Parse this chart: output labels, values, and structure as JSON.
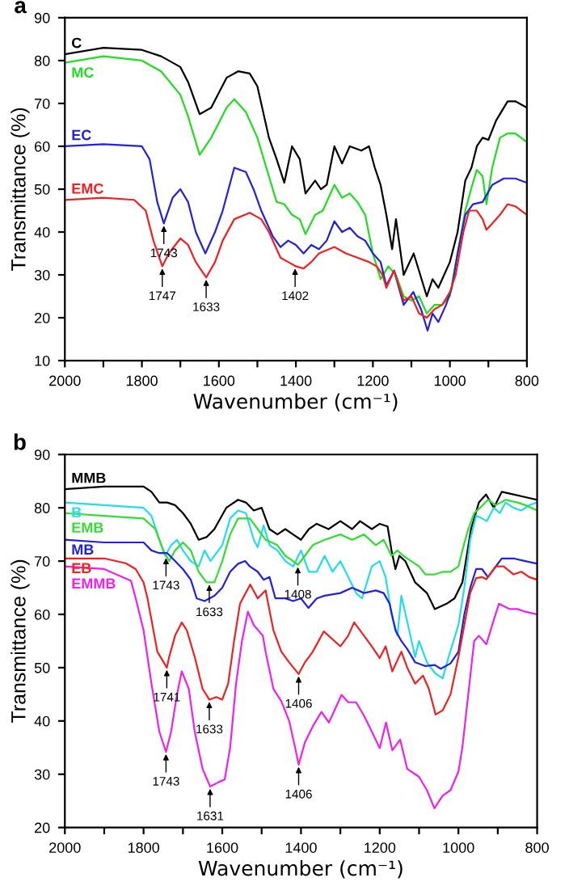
{
  "chart_data": [
    {
      "type": "line",
      "title": "a",
      "xlabel": "Wavenumber (cm⁻¹)",
      "ylabel": "Transmittance (%)",
      "xlim": [
        2000,
        800
      ],
      "ylim": [
        10,
        90
      ],
      "xticks": [
        2000,
        {
          "value": 1900,
          "label": null
        },
        1800,
        {
          "value": 1700,
          "label": null
        },
        1600,
        {
          "value": 1500,
          "label": null
        },
        1400,
        {
          "value": 1300,
          "label": null
        },
        1200,
        {
          "value": 1100,
          "label": null
        },
        1000,
        {
          "value": 900,
          "label": null
        },
        800
      ],
      "yticks": [
        10,
        20,
        30,
        40,
        50,
        60,
        70,
        80,
        90
      ],
      "grid": false,
      "legend": false,
      "marker": "none",
      "line_style": "solid",
      "series": [
        {
          "name": "C",
          "color": "#000000",
          "x": [
            2000,
            1900,
            1800,
            1750,
            1700,
            1680,
            1650,
            1620,
            1580,
            1550,
            1520,
            1500,
            1470,
            1450,
            1430,
            1410,
            1390,
            1375,
            1350,
            1335,
            1320,
            1300,
            1280,
            1260,
            1230,
            1210,
            1195,
            1180,
            1165,
            1150,
            1140,
            1120,
            1094,
            1060,
            1045,
            1030,
            1000,
            980,
            960,
            944,
            930,
            915,
            900,
            880,
            850,
            830,
            800
          ],
          "values": [
            81.5,
            83,
            82.5,
            81,
            78.5,
            75,
            67.5,
            69,
            76,
            77.5,
            77,
            74,
            62,
            57,
            51.5,
            60,
            57,
            49,
            52,
            50,
            51,
            60,
            56,
            60,
            59,
            60,
            55,
            51,
            44,
            36,
            43,
            30,
            35,
            25,
            29,
            27,
            33,
            40,
            52,
            55,
            60,
            62,
            61.5,
            66,
            70.5,
            70.5,
            69
          ]
        },
        {
          "name": "MC",
          "color": "#22dd22",
          "x": [
            2000,
            1900,
            1800,
            1750,
            1700,
            1680,
            1650,
            1620,
            1580,
            1560,
            1530,
            1500,
            1470,
            1450,
            1430,
            1410,
            1390,
            1375,
            1350,
            1330,
            1300,
            1280,
            1260,
            1240,
            1220,
            1200,
            1180,
            1160,
            1140,
            1120,
            1100,
            1080,
            1060,
            1040,
            1020,
            1000,
            980,
            960,
            945,
            930,
            915,
            905,
            890,
            870,
            850,
            830,
            800
          ],
          "values": [
            79.5,
            81,
            80,
            77.5,
            72,
            67,
            58,
            62,
            69,
            71,
            68,
            62,
            53,
            47,
            46.5,
            44,
            43,
            39.5,
            44,
            45,
            51,
            48,
            49,
            47,
            44,
            35,
            29,
            32,
            30,
            25,
            24,
            25,
            21,
            23,
            23,
            25,
            35,
            45,
            50,
            54.5,
            53,
            46.5,
            55,
            62,
            63,
            63,
            61
          ]
        },
        {
          "name": "EC",
          "color": "#2222dd",
          "x": [
            2000,
            1900,
            1800,
            1780,
            1760,
            1743,
            1720,
            1700,
            1680,
            1660,
            1635,
            1610,
            1590,
            1560,
            1530,
            1510,
            1490,
            1460,
            1440,
            1420,
            1400,
            1380,
            1360,
            1340,
            1320,
            1300,
            1280,
            1260,
            1240,
            1220,
            1200,
            1180,
            1165,
            1145,
            1120,
            1095,
            1075,
            1058,
            1045,
            1030,
            1010,
            995,
            980,
            960,
            940,
            915,
            890,
            860,
            830,
            800
          ],
          "values": [
            60,
            60.5,
            60,
            57,
            47,
            42,
            48,
            50,
            47,
            40,
            35,
            40,
            45,
            55,
            54,
            50,
            45,
            39,
            36.5,
            38,
            37,
            35,
            37,
            36,
            38,
            42.5,
            40,
            41,
            39,
            38,
            35,
            33,
            27.5,
            31,
            23,
            26,
            22,
            17,
            21,
            19,
            23,
            27,
            35,
            44,
            46.5,
            47,
            51,
            52.5,
            52.5,
            51.5
          ]
        },
        {
          "name": "EMC",
          "color": "#ee2222",
          "x": [
            2000,
            1900,
            1820,
            1790,
            1770,
            1747,
            1730,
            1700,
            1680,
            1660,
            1633,
            1610,
            1590,
            1560,
            1520,
            1490,
            1470,
            1440,
            1420,
            1400,
            1380,
            1360,
            1340,
            1300,
            1270,
            1240,
            1210,
            1190,
            1175,
            1165,
            1145,
            1120,
            1100,
            1080,
            1060,
            1040,
            1020,
            1000,
            985,
            965,
            950,
            930,
            915,
            905,
            890,
            870,
            850,
            830,
            800
          ],
          "values": [
            47.5,
            48,
            47.5,
            45,
            38,
            32,
            35,
            38.5,
            37,
            33,
            29.4,
            33,
            38,
            43,
            44.5,
            43,
            40,
            34,
            33,
            32,
            31.5,
            33,
            35,
            36.5,
            35,
            34,
            33,
            32,
            30,
            27,
            31,
            24,
            25,
            21,
            20,
            22,
            23,
            26,
            30,
            40,
            45,
            45,
            43,
            40.5,
            42,
            44,
            46.5,
            46,
            44
          ]
        }
      ],
      "annotations": [
        {
          "text": "1743",
          "x": 1743,
          "y": 42
        },
        {
          "text": "1747",
          "x": 1747,
          "y": 32
        },
        {
          "text": "1633",
          "x": 1633,
          "y": 29.4
        },
        {
          "text": "1402",
          "x": 1402,
          "y": 32
        }
      ]
    },
    {
      "type": "line",
      "title": "b",
      "xlabel": "Wavenumber (cm⁻¹)",
      "ylabel": "Transmittance (%)",
      "xlim": [
        2000,
        800
      ],
      "ylim": [
        20,
        90
      ],
      "xticks": [
        2000,
        {
          "value": 1900,
          "label": null
        },
        1800,
        {
          "value": 1700,
          "label": null
        },
        1600,
        {
          "value": 1500,
          "label": null
        },
        1400,
        {
          "value": 1300,
          "label": null
        },
        1200,
        {
          "value": 1100,
          "label": null
        },
        1000,
        {
          "value": 900,
          "label": null
        },
        800
      ],
      "yticks": [
        20,
        30,
        40,
        50,
        60,
        70,
        80,
        90
      ],
      "grid": false,
      "legend": false,
      "marker": "none",
      "line_style": "solid",
      "series": [
        {
          "name": "MMB",
          "color": "#000000",
          "x": [
            2000,
            1900,
            1800,
            1780,
            1760,
            1740,
            1720,
            1700,
            1680,
            1660,
            1640,
            1620,
            1590,
            1560,
            1540,
            1520,
            1500,
            1480,
            1460,
            1440,
            1420,
            1400,
            1380,
            1360,
            1330,
            1300,
            1270,
            1250,
            1220,
            1200,
            1180,
            1170,
            1160,
            1150,
            1135,
            1110,
            1080,
            1060,
            1030,
            1010,
            990,
            968,
            948,
            930,
            910,
            890,
            860,
            830,
            800
          ],
          "values": [
            83.5,
            84,
            84,
            83,
            81,
            81,
            80.5,
            79,
            77,
            74,
            74.5,
            76,
            80,
            81.5,
            81,
            79.5,
            80,
            76,
            75,
            76,
            75,
            74,
            76,
            77,
            76,
            77.5,
            76,
            77.5,
            76,
            77,
            76.5,
            72,
            68.5,
            71,
            70,
            66,
            64,
            61,
            62,
            63,
            66,
            76,
            81,
            82.5,
            80,
            83,
            82.5,
            82,
            81.5
          ]
        },
        {
          "name": "B",
          "color": "#22ddee",
          "x": [
            2000,
            1900,
            1800,
            1780,
            1760,
            1745,
            1730,
            1715,
            1700,
            1680,
            1660,
            1645,
            1630,
            1600,
            1580,
            1560,
            1540,
            1520,
            1510,
            1495,
            1480,
            1460,
            1440,
            1420,
            1400,
            1380,
            1360,
            1340,
            1320,
            1300,
            1280,
            1260,
            1245,
            1220,
            1200,
            1185,
            1170,
            1155,
            1145,
            1125,
            1110,
            1100,
            1080,
            1060,
            1040,
            1025,
            1000,
            985,
            970,
            955,
            940,
            928,
            910,
            895,
            880,
            860,
            840,
            820,
            800
          ],
          "values": [
            81,
            80.5,
            80,
            78.5,
            74,
            71,
            73,
            74,
            72,
            70,
            69,
            72,
            70,
            73,
            78,
            79.5,
            79,
            74,
            72.6,
            76.7,
            73,
            72,
            70,
            69,
            72,
            68,
            68,
            71,
            68,
            70,
            67,
            64,
            63,
            69,
            70,
            67,
            60,
            56,
            63.5,
            57,
            52,
            55,
            51,
            49,
            48,
            52,
            58,
            65,
            74,
            78.5,
            78,
            77.5,
            80,
            79,
            81,
            80,
            79.5,
            80.5,
            81
          ]
        },
        {
          "name": "EMB",
          "color": "#33dd33",
          "x": [
            2000,
            1900,
            1800,
            1770,
            1750,
            1735,
            1720,
            1700,
            1680,
            1660,
            1640,
            1620,
            1600,
            1580,
            1560,
            1530,
            1510,
            1490,
            1460,
            1440,
            1420,
            1408,
            1390,
            1370,
            1340,
            1300,
            1270,
            1240,
            1210,
            1190,
            1170,
            1155,
            1140,
            1120,
            1100,
            1084,
            1060,
            1040,
            1020,
            1000,
            990,
            975,
            960,
            945,
            925,
            905,
            880,
            850,
            830,
            800
          ],
          "values": [
            79,
            78.5,
            78,
            76,
            72,
            70,
            72,
            73.5,
            72,
            68,
            66,
            66,
            70,
            75,
            78,
            78,
            76,
            74,
            73,
            71,
            70,
            69.3,
            71,
            73,
            74,
            75,
            74,
            75,
            73,
            74,
            71,
            72,
            71,
            70,
            69,
            67.5,
            67.5,
            68,
            68,
            69,
            72,
            76,
            79,
            80,
            81.5,
            80.5,
            81.5,
            81,
            80.5,
            79.5
          ]
        },
        {
          "name": "MB",
          "color": "#2222dd",
          "x": [
            2000,
            1900,
            1800,
            1780,
            1760,
            1740,
            1720,
            1700,
            1680,
            1665,
            1645,
            1620,
            1600,
            1580,
            1560,
            1542,
            1530,
            1510,
            1495,
            1480,
            1465,
            1440,
            1420,
            1400,
            1381,
            1360,
            1340,
            1300,
            1270,
            1240,
            1210,
            1190,
            1175,
            1160,
            1145,
            1130,
            1110,
            1084,
            1060,
            1045,
            1020,
            1000,
            985,
            970,
            955,
            940,
            925,
            910,
            890,
            860,
            830,
            800
          ],
          "values": [
            74,
            73.5,
            73.5,
            72,
            71.5,
            71.5,
            70,
            68.5,
            66.5,
            63,
            62.5,
            63.5,
            65,
            68,
            69.5,
            70,
            69,
            68,
            66.5,
            67,
            63,
            63,
            62.5,
            63,
            61.2,
            63,
            63.5,
            64,
            65,
            64,
            64.5,
            64,
            62,
            57,
            55,
            53.5,
            51,
            50.3,
            50.5,
            49.8,
            50.8,
            53,
            60,
            65,
            68.5,
            68.5,
            67,
            68.5,
            70.5,
            70.5,
            70,
            69.5
          ]
        },
        {
          "name": "EB",
          "color": "#ee2222",
          "x": [
            2000,
            1900,
            1845,
            1820,
            1800,
            1790,
            1780,
            1765,
            1741,
            1735,
            1720,
            1703,
            1690,
            1670,
            1650,
            1633,
            1615,
            1600,
            1585,
            1570,
            1555,
            1529,
            1510,
            1490,
            1470,
            1450,
            1430,
            1406,
            1390,
            1370,
            1342,
            1300,
            1280,
            1265,
            1240,
            1220,
            1200,
            1185,
            1168,
            1145,
            1130,
            1110,
            1090,
            1075,
            1058,
            1040,
            1020,
            1000,
            985,
            970,
            955,
            940,
            929,
            905,
            885,
            860,
            840,
            820,
            800
          ],
          "values": [
            70.5,
            70.5,
            69.6,
            68.5,
            66,
            63,
            59,
            53,
            50,
            52,
            56,
            58.5,
            57,
            52,
            46,
            44,
            44.5,
            44,
            47,
            55,
            62,
            65.6,
            63,
            64.5,
            57,
            53,
            51,
            48.8,
            51,
            53,
            56.8,
            54,
            56,
            58.5,
            56,
            54,
            51.8,
            54,
            49.3,
            53,
            50,
            47,
            48.5,
            46,
            41.2,
            42,
            45,
            52,
            58,
            64,
            66.8,
            67,
            66.6,
            69,
            69,
            67.5,
            68,
            67,
            66.5
          ]
        },
        {
          "name": "EMMB",
          "color": "#ee22ee",
          "x": [
            2000,
            1900,
            1832,
            1820,
            1800,
            1780,
            1760,
            1743,
            1730,
            1715,
            1703,
            1685,
            1670,
            1650,
            1631,
            1610,
            1594,
            1580,
            1565,
            1550,
            1535,
            1520,
            1497,
            1490,
            1470,
            1450,
            1430,
            1415,
            1406,
            1390,
            1370,
            1348,
            1329,
            1297,
            1280,
            1260,
            1240,
            1220,
            1200,
            1184,
            1168,
            1148,
            1130,
            1110,
            1100,
            1080,
            1061,
            1040,
            1020,
            1000,
            990,
            975,
            960,
            948,
            929,
            910,
            897,
            870,
            850,
            830,
            800
          ],
          "values": [
            69,
            68.5,
            66.3,
            63,
            57,
            47,
            38,
            34.2,
            38,
            45,
            49.3,
            46,
            38,
            31,
            27.7,
            28.5,
            29,
            35,
            47,
            55,
            60.5,
            58,
            56,
            53,
            46,
            43.7,
            40,
            35,
            31.8,
            36,
            39,
            41.7,
            39.7,
            44.9,
            43.5,
            43.5,
            41,
            38,
            34.9,
            39.7,
            34.5,
            36.5,
            31,
            30,
            29.5,
            27,
            23.6,
            26,
            27,
            30.5,
            35,
            45,
            55,
            56,
            54.4,
            59,
            62,
            61,
            61,
            60.5,
            60
          ]
        }
      ],
      "annotations": [
        {
          "text": "1743",
          "x": 1743,
          "y": 71
        },
        {
          "text": "1633",
          "x": 1633,
          "y": 66
        },
        {
          "text": "1408",
          "x": 1408,
          "y": 69.3
        },
        {
          "text": "1741",
          "x": 1741,
          "y": 50
        },
        {
          "text": "1633",
          "x": 1633,
          "y": 44
        },
        {
          "text": "1406",
          "x": 1406,
          "y": 48.8
        },
        {
          "text": "1743",
          "x": 1743,
          "y": 34.2
        },
        {
          "text": "1631",
          "x": 1631,
          "y": 27.7
        },
        {
          "text": "1406",
          "x": 1406,
          "y": 31.8
        }
      ]
    }
  ]
}
